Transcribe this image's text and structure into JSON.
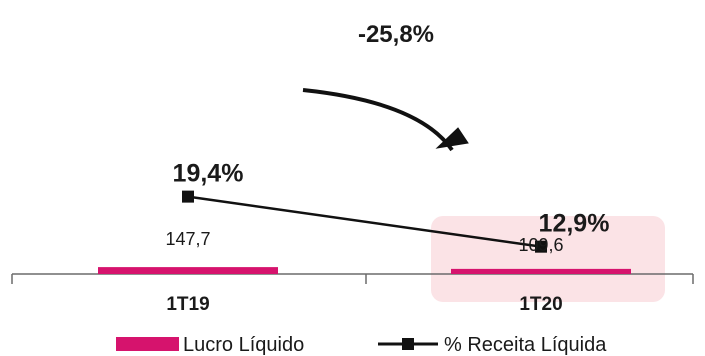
{
  "chart_data": {
    "type": "bar",
    "categories": [
      "1T19",
      "1T20"
    ],
    "series": [
      {
        "name": "Lucro Líquido",
        "type": "bar",
        "values": [
          147.7,
          109.6
        ],
        "labels": [
          "147,7",
          "109,6"
        ],
        "color": "#d6136d"
      },
      {
        "name": "% Receita Líquida",
        "type": "line",
        "values": [
          19.4,
          12.9
        ],
        "labels": [
          "19,4%",
          "12,9%"
        ],
        "color": "#111111"
      }
    ],
    "annotation": "-25,8%",
    "highlight_category": "1T20",
    "highlight_color": "#fbe3e6"
  }
}
